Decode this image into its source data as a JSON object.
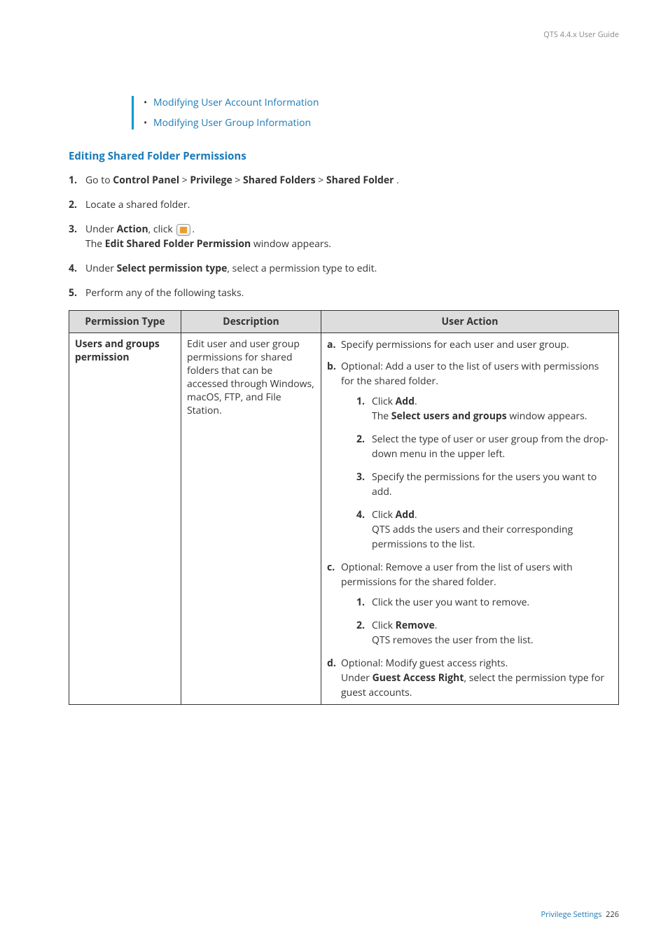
{
  "header": {
    "guide_title": "QTS 4.4.x User Guide"
  },
  "note_links": {
    "link1": "Modifying User Account Information",
    "link2": "Modifying User Group Information"
  },
  "section": {
    "title": "Editing Shared Folder Permissions"
  },
  "steps": {
    "s1_prefix": "Go to ",
    "s1_b1": "Control Panel",
    "s1_sep": " > ",
    "s1_b2": "Privilege",
    "s1_b3": "Shared Folders",
    "s1_b4": "Shared Folder",
    "s1_suffix": " .",
    "s2": "Locate a shared folder.",
    "s3_prefix": "Under ",
    "s3_b1": "Action",
    "s3_mid": ", click ",
    "s3_line2_a": "The ",
    "s3_line2_b": "Edit Shared Folder Permission",
    "s3_line2_c": " window appears.",
    "s4_a": "Under ",
    "s4_b": "Select permission type",
    "s4_c": ", select a permission type to edit.",
    "s5": "Perform any of the following tasks."
  },
  "table": {
    "h1": "Permission Type",
    "h2": "Description",
    "h3": "User Action",
    "row1": {
      "type_b": "Users and groups permission",
      "desc": "Edit user and user group permissions for shared folders that can be accessed through Windows, macOS, FTP, and File Station.",
      "ua": {
        "a": "Specify permissions for each user and user group.",
        "b": "Optional: Add a user to the list of users with permissions for the shared folder.",
        "b1_a": "Click ",
        "b1_b": "Add",
        "b1_c": ".",
        "b1_l2a": "The ",
        "b1_l2b": "Select users and groups",
        "b1_l2c": " window appears.",
        "b2": "Select the type of user or user group from the drop-down menu in the upper left.",
        "b3": "Specify the permissions for the users you want to add.",
        "b4_a": "Click ",
        "b4_b": "Add",
        "b4_c": ".",
        "b4_l2": "QTS adds the users and their corresponding permissions to the list.",
        "c": "Optional: Remove a user from the list of users with permissions for the shared folder.",
        "c1": "Click the user you want to remove.",
        "c2_a": "Click ",
        "c2_b": "Remove",
        "c2_c": ".",
        "c2_l2": "QTS removes the user from the list.",
        "d_a": "Optional: Modify guest access rights.",
        "d_l2a": "Under ",
        "d_l2b": "Guest Access Right",
        "d_l2c": ", select the permission type for guest accounts."
      }
    }
  },
  "footer": {
    "section": "Privilege Settings",
    "page": "226"
  }
}
